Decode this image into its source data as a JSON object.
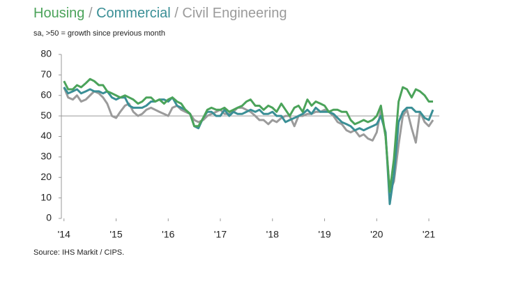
{
  "chart_data": {
    "type": "line",
    "subtitle": "sa, >50 = growth since previous month",
    "title_separator": " / ",
    "source": "Source: IHS Markit / CIPS.",
    "x": [
      2014.0,
      2014.08,
      2014.17,
      2014.25,
      2014.33,
      2014.42,
      2014.5,
      2014.58,
      2014.67,
      2014.75,
      2014.83,
      2014.92,
      2015.0,
      2015.08,
      2015.17,
      2015.25,
      2015.33,
      2015.42,
      2015.5,
      2015.58,
      2015.67,
      2015.75,
      2015.83,
      2015.92,
      2016.0,
      2016.08,
      2016.17,
      2016.25,
      2016.33,
      2016.42,
      2016.5,
      2016.58,
      2016.67,
      2016.75,
      2016.83,
      2016.92,
      2017.0,
      2017.08,
      2017.17,
      2017.25,
      2017.33,
      2017.42,
      2017.5,
      2017.58,
      2017.67,
      2017.75,
      2017.83,
      2017.92,
      2018.0,
      2018.08,
      2018.17,
      2018.25,
      2018.33,
      2018.42,
      2018.5,
      2018.58,
      2018.67,
      2018.75,
      2018.83,
      2018.92,
      2019.0,
      2019.08,
      2019.17,
      2019.25,
      2019.33,
      2019.42,
      2019.5,
      2019.58,
      2019.67,
      2019.75,
      2019.83,
      2019.92,
      2020.0,
      2020.08,
      2020.17,
      2020.25,
      2020.33,
      2020.42,
      2020.5,
      2020.58,
      2020.67,
      2020.75,
      2020.83,
      2020.92,
      2021.0,
      2021.08
    ],
    "series": [
      {
        "name": "Housing",
        "color": "#4ba35a",
        "values": [
          67,
          63,
          63,
          65,
          64,
          66,
          68,
          67,
          65,
          65,
          62,
          61,
          60,
          59,
          60,
          59,
          58,
          56,
          57,
          59,
          59,
          57,
          58,
          56,
          58,
          59,
          57,
          56,
          53,
          51,
          45,
          45,
          49,
          53,
          54,
          53,
          53,
          54,
          52,
          53,
          54,
          55,
          57,
          58,
          55,
          55,
          53,
          55,
          54,
          52,
          56,
          53,
          50,
          54,
          55,
          52,
          58,
          55,
          57,
          56,
          55,
          52,
          53,
          53,
          52,
          52,
          48,
          46,
          47,
          48,
          47,
          48,
          50,
          55,
          40,
          13,
          29,
          57,
          64,
          63,
          59,
          63,
          62,
          60,
          57,
          57
        ]
      },
      {
        "name": "Commercial",
        "color": "#3a8f96",
        "values": [
          64,
          61,
          62,
          63,
          61,
          62,
          63,
          62,
          62,
          61,
          62,
          59,
          58,
          59,
          59,
          55,
          54,
          54,
          54,
          55,
          57,
          57,
          58,
          58,
          57,
          59,
          55,
          54,
          53,
          51,
          45,
          44,
          49,
          52,
          52,
          50,
          50,
          53,
          50,
          52,
          51,
          51,
          52,
          53,
          52,
          53,
          51,
          51,
          52,
          50,
          50,
          47,
          48,
          49,
          50,
          51,
          53,
          51,
          54,
          52,
          52,
          52,
          51,
          49,
          47,
          46,
          45,
          43,
          44,
          43,
          44,
          45,
          46,
          50,
          42,
          7,
          21,
          47,
          52,
          54,
          54,
          52,
          52,
          49,
          48,
          53
        ]
      },
      {
        "name": "Civil Engineering",
        "color": "#9b9b9b",
        "values": [
          64,
          59,
          58,
          60,
          57,
          58,
          60,
          62,
          61,
          59,
          56,
          50,
          49,
          52,
          55,
          56,
          52,
          50,
          51,
          53,
          54,
          53,
          52,
          51,
          50,
          54,
          55,
          53,
          52,
          51,
          48,
          47,
          48,
          50,
          51,
          52,
          53,
          51,
          51,
          52,
          54,
          54,
          53,
          52,
          50,
          48,
          48,
          46,
          48,
          47,
          49,
          50,
          50,
          45,
          50,
          50,
          51,
          51,
          52,
          52,
          53,
          52,
          50,
          47,
          46,
          43,
          42,
          43,
          40,
          41,
          39,
          38,
          42,
          53,
          40,
          13,
          18,
          36,
          50,
          53,
          44,
          37,
          52,
          47,
          45,
          48
        ]
      }
    ],
    "xlim": [
      2013.95,
      2021.2
    ],
    "xticks": [
      {
        "value": 2014,
        "label": "'14"
      },
      {
        "value": 2015,
        "label": "'15"
      },
      {
        "value": 2016,
        "label": "'16"
      },
      {
        "value": 2017,
        "label": "'17"
      },
      {
        "value": 2018,
        "label": "'18"
      },
      {
        "value": 2019,
        "label": "'19"
      },
      {
        "value": 2020,
        "label": "'20"
      },
      {
        "value": 2021,
        "label": "'21"
      }
    ],
    "ylim": [
      0,
      80
    ],
    "yticks": [
      0,
      10,
      20,
      30,
      40,
      50,
      60,
      70,
      80
    ],
    "reference_line": 50,
    "grid": false
  }
}
